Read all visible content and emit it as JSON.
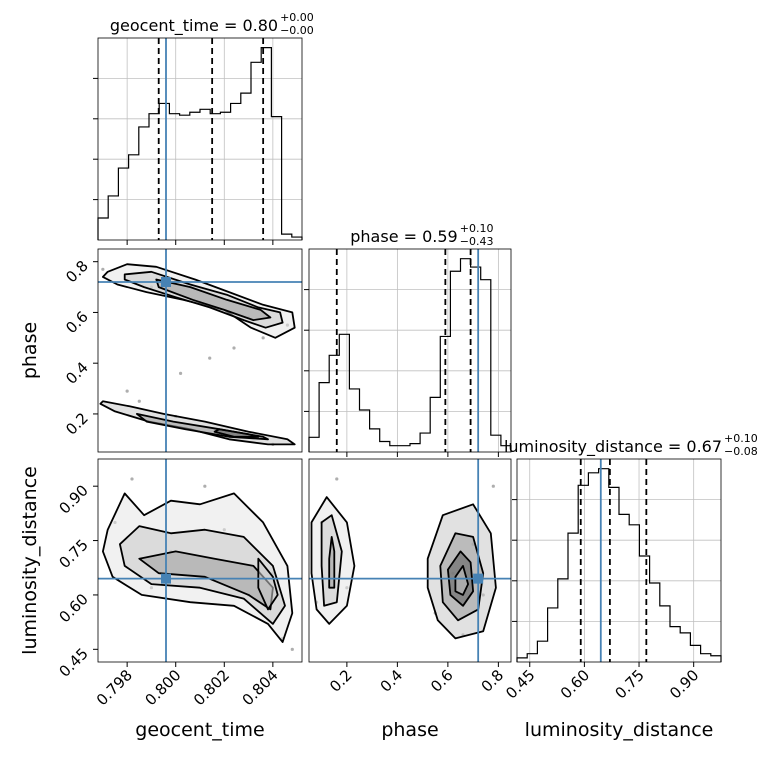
{
  "chart_data": {
    "type": "scatter",
    "kind": "corner-plot",
    "parameters": [
      "geocent_time",
      "phase",
      "luminosity_distance"
    ],
    "axis_labels": {
      "geocent_time": "geocent_time",
      "phase": "phase",
      "luminosity_distance": "luminosity_distance"
    },
    "titles": [
      {
        "param": "geocent_time",
        "text": "geocent_time = 0.80",
        "sup": "+0.00",
        "sub": "−0.00"
      },
      {
        "param": "phase",
        "text": "phase = 0.59",
        "sup": "+0.10",
        "sub": "−0.43"
      },
      {
        "param": "luminosity_distance",
        "text": "luminosity_distance = 0.67",
        "sup": "+0.10",
        "sub": "−0.08"
      }
    ],
    "ranges": {
      "geocent_time": [
        0.7968,
        0.8052
      ],
      "phase": [
        0.05,
        0.85
      ],
      "luminosity_distance": [
        0.415,
        0.975
      ]
    },
    "ticks": {
      "geocent_time": {
        "values": [
          0.798,
          0.8,
          0.802,
          0.804
        ],
        "labels": [
          "0.798",
          "0.800",
          "0.802",
          "0.804"
        ]
      },
      "phase": {
        "values": [
          0.2,
          0.4,
          0.6,
          0.8
        ],
        "labels": [
          "0.2",
          "0.4",
          "0.6",
          "0.8"
        ]
      },
      "luminosity_distance": {
        "values": [
          0.45,
          0.6,
          0.75,
          0.9
        ],
        "labels": [
          "0.45",
          "0.60",
          "0.75",
          "0.90"
        ]
      }
    },
    "truths": {
      "geocent_time": 0.7996,
      "phase": 0.72,
      "luminosity_distance": 0.645
    },
    "quantiles": {
      "geocent_time": [
        0.7993,
        0.8015,
        0.8036
      ],
      "phase": [
        0.16,
        0.59,
        0.69
      ],
      "luminosity_distance": [
        0.59,
        0.67,
        0.77
      ]
    },
    "histograms": {
      "geocent_time": {
        "edges": [
          0.7968,
          0.79722,
          0.79764,
          0.79806,
          0.79848,
          0.7989,
          0.79932,
          0.79974,
          0.80016,
          0.80058,
          0.801,
          0.80142,
          0.80184,
          0.80226,
          0.80268,
          0.8031,
          0.80352,
          0.80394,
          0.80436,
          0.80478,
          0.8052
        ],
        "counts": [
          0.15,
          0.3,
          0.49,
          0.58,
          0.77,
          0.86,
          0.93,
          0.86,
          0.85,
          0.87,
          0.89,
          0.86,
          0.87,
          0.93,
          1.0,
          1.21,
          1.31,
          0.84,
          0.04,
          0.02
        ]
      },
      "phase": {
        "edges": [
          0.05,
          0.09,
          0.13,
          0.17,
          0.21,
          0.25,
          0.29,
          0.33,
          0.37,
          0.41,
          0.45,
          0.49,
          0.53,
          0.57,
          0.61,
          0.65,
          0.69,
          0.73,
          0.77,
          0.81,
          0.85
        ],
        "counts": [
          0.07,
          0.33,
          0.46,
          0.56,
          0.3,
          0.2,
          0.11,
          0.05,
          0.03,
          0.03,
          0.04,
          0.09,
          0.26,
          0.55,
          0.86,
          0.92,
          0.88,
          0.82,
          0.08,
          0.03
        ]
      },
      "luminosity_distance": {
        "edges": [
          0.415,
          0.443,
          0.471,
          0.499,
          0.527,
          0.555,
          0.583,
          0.611,
          0.639,
          0.667,
          0.695,
          0.723,
          0.751,
          0.779,
          0.807,
          0.835,
          0.863,
          0.891,
          0.919,
          0.947,
          0.975
        ],
        "counts": [
          0.02,
          0.04,
          0.1,
          0.26,
          0.4,
          0.62,
          0.85,
          0.91,
          0.93,
          0.84,
          0.71,
          0.66,
          0.51,
          0.38,
          0.27,
          0.17,
          0.14,
          0.08,
          0.04,
          0.03
        ]
      }
    },
    "contours": {
      "phase|geocent_time": [
        [
          [
            0.7972,
            0.76
          ],
          [
            0.798,
            0.79
          ],
          [
            0.7992,
            0.78
          ],
          [
            0.8008,
            0.73
          ],
          [
            0.8022,
            0.68
          ],
          [
            0.8036,
            0.63
          ],
          [
            0.8048,
            0.6
          ],
          [
            0.8049,
            0.54
          ],
          [
            0.8041,
            0.5
          ],
          [
            0.8031,
            0.54
          ],
          [
            0.802,
            0.61
          ],
          [
            0.8003,
            0.65
          ],
          [
            0.7988,
            0.68
          ],
          [
            0.7976,
            0.71
          ],
          [
            0.797,
            0.74
          ]
        ],
        [
          [
            0.7979,
            0.75
          ],
          [
            0.799,
            0.76
          ],
          [
            0.8006,
            0.71
          ],
          [
            0.8021,
            0.67
          ],
          [
            0.8034,
            0.62
          ],
          [
            0.8043,
            0.6
          ],
          [
            0.8044,
            0.56
          ],
          [
            0.8037,
            0.54
          ],
          [
            0.8028,
            0.57
          ],
          [
            0.8014,
            0.62
          ],
          [
            0.8,
            0.66
          ],
          [
            0.7987,
            0.7
          ],
          [
            0.7979,
            0.73
          ]
        ],
        [
          [
            0.7992,
            0.73
          ],
          [
            0.8006,
            0.7
          ],
          [
            0.8021,
            0.65
          ],
          [
            0.8035,
            0.61
          ],
          [
            0.8039,
            0.58
          ],
          [
            0.8032,
            0.57
          ],
          [
            0.802,
            0.61
          ],
          [
            0.8007,
            0.65
          ],
          [
            0.7993,
            0.7
          ]
        ],
        [
          [
            0.797,
            0.25
          ],
          [
            0.7981,
            0.23
          ],
          [
            0.7995,
            0.2
          ],
          [
            0.8012,
            0.17
          ],
          [
            0.803,
            0.13
          ],
          [
            0.8046,
            0.1
          ],
          [
            0.8049,
            0.08
          ],
          [
            0.8038,
            0.08
          ],
          [
            0.8022,
            0.1
          ],
          [
            0.8006,
            0.14
          ],
          [
            0.7989,
            0.17
          ],
          [
            0.7975,
            0.21
          ],
          [
            0.7969,
            0.24
          ]
        ],
        [
          [
            0.7984,
            0.2
          ],
          [
            0.7999,
            0.17
          ],
          [
            0.8018,
            0.14
          ],
          [
            0.8036,
            0.11
          ],
          [
            0.8038,
            0.1
          ],
          [
            0.8022,
            0.11
          ],
          [
            0.8004,
            0.14
          ],
          [
            0.7988,
            0.17
          ]
        ],
        [
          [
            0.8018,
            0.14
          ],
          [
            0.803,
            0.12
          ],
          [
            0.8034,
            0.11
          ],
          [
            0.8024,
            0.11
          ],
          [
            0.8016,
            0.13
          ]
        ]
      ],
      "luminosity_distance|geocent_time": [
        [
          [
            0.7972,
            0.78
          ],
          [
            0.7979,
            0.88
          ],
          [
            0.7987,
            0.82
          ],
          [
            0.7998,
            0.86
          ],
          [
            0.801,
            0.85
          ],
          [
            0.8024,
            0.88
          ],
          [
            0.8036,
            0.8
          ],
          [
            0.8046,
            0.68
          ],
          [
            0.8048,
            0.55
          ],
          [
            0.8044,
            0.47
          ],
          [
            0.8038,
            0.52
          ],
          [
            0.8024,
            0.57
          ],
          [
            0.8006,
            0.58
          ],
          [
            0.7986,
            0.6
          ],
          [
            0.7974,
            0.65
          ],
          [
            0.797,
            0.72
          ]
        ],
        [
          [
            0.7977,
            0.74
          ],
          [
            0.7985,
            0.79
          ],
          [
            0.7998,
            0.77
          ],
          [
            0.8012,
            0.78
          ],
          [
            0.8028,
            0.76
          ],
          [
            0.804,
            0.68
          ],
          [
            0.8045,
            0.57
          ],
          [
            0.804,
            0.52
          ],
          [
            0.8028,
            0.59
          ],
          [
            0.801,
            0.62
          ],
          [
            0.799,
            0.63
          ],
          [
            0.7979,
            0.68
          ]
        ],
        [
          [
            0.7985,
            0.7
          ],
          [
            0.8,
            0.72
          ],
          [
            0.8016,
            0.7
          ],
          [
            0.8032,
            0.68
          ],
          [
            0.804,
            0.62
          ],
          [
            0.8039,
            0.56
          ],
          [
            0.803,
            0.6
          ],
          [
            0.8012,
            0.65
          ],
          [
            0.7993,
            0.66
          ]
        ],
        [
          [
            0.8034,
            0.7
          ],
          [
            0.804,
            0.65
          ],
          [
            0.8042,
            0.6
          ],
          [
            0.8038,
            0.56
          ],
          [
            0.8034,
            0.62
          ]
        ]
      ],
      "luminosity_distance|phase": [
        [
          [
            0.06,
            0.8
          ],
          [
            0.12,
            0.87
          ],
          [
            0.2,
            0.8
          ],
          [
            0.23,
            0.68
          ],
          [
            0.2,
            0.57
          ],
          [
            0.13,
            0.52
          ],
          [
            0.08,
            0.56
          ],
          [
            0.06,
            0.66
          ]
        ],
        [
          [
            0.1,
            0.8
          ],
          [
            0.14,
            0.82
          ],
          [
            0.18,
            0.72
          ],
          [
            0.16,
            0.58
          ],
          [
            0.11,
            0.57
          ],
          [
            0.1,
            0.68
          ]
        ],
        [
          [
            0.14,
            0.76
          ],
          [
            0.15,
            0.72
          ],
          [
            0.15,
            0.62
          ],
          [
            0.13,
            0.62
          ],
          [
            0.13,
            0.7
          ]
        ],
        [
          [
            0.52,
            0.7
          ],
          [
            0.58,
            0.82
          ],
          [
            0.7,
            0.85
          ],
          [
            0.77,
            0.77
          ],
          [
            0.79,
            0.62
          ],
          [
            0.74,
            0.5
          ],
          [
            0.63,
            0.48
          ],
          [
            0.56,
            0.53
          ],
          [
            0.52,
            0.62
          ]
        ],
        [
          [
            0.57,
            0.68
          ],
          [
            0.63,
            0.77
          ],
          [
            0.7,
            0.76
          ],
          [
            0.74,
            0.66
          ],
          [
            0.72,
            0.56
          ],
          [
            0.64,
            0.53
          ],
          [
            0.58,
            0.58
          ]
        ],
        [
          [
            0.6,
            0.67
          ],
          [
            0.65,
            0.72
          ],
          [
            0.69,
            0.69
          ],
          [
            0.7,
            0.61
          ],
          [
            0.66,
            0.57
          ],
          [
            0.61,
            0.6
          ]
        ],
        [
          [
            0.63,
            0.65
          ],
          [
            0.66,
            0.68
          ],
          [
            0.68,
            0.63
          ],
          [
            0.66,
            0.6
          ],
          [
            0.63,
            0.61
          ]
        ]
      ]
    },
    "samples": {
      "phase|geocent_time": [
        {
          "x": 0.797,
          "y": 0.77
        },
        {
          "x": 0.799,
          "y": 0.7
        },
        {
          "x": 0.801,
          "y": 0.64
        },
        {
          "x": 0.803,
          "y": 0.58
        },
        {
          "x": 0.8046,
          "y": 0.55
        },
        {
          "x": 0.8002,
          "y": 0.36
        },
        {
          "x": 0.8014,
          "y": 0.42
        },
        {
          "x": 0.8024,
          "y": 0.46
        },
        {
          "x": 0.8036,
          "y": 0.5
        },
        {
          "x": 0.798,
          "y": 0.29
        },
        {
          "x": 0.8,
          "y": 0.19
        },
        {
          "x": 0.802,
          "y": 0.12
        },
        {
          "x": 0.804,
          "y": 0.08
        },
        {
          "x": 0.7985,
          "y": 0.25
        }
      ],
      "luminosity_distance|geocent_time": [
        {
          "x": 0.7975,
          "y": 0.8
        },
        {
          "x": 0.7998,
          "y": 0.72
        },
        {
          "x": 0.8012,
          "y": 0.9
        },
        {
          "x": 0.803,
          "y": 0.6
        },
        {
          "x": 0.8044,
          "y": 0.48
        },
        {
          "x": 0.799,
          "y": 0.62
        },
        {
          "x": 0.802,
          "y": 0.78
        },
        {
          "x": 0.804,
          "y": 0.66
        },
        {
          "x": 0.7982,
          "y": 0.92
        },
        {
          "x": 0.8048,
          "y": 0.45
        }
      ],
      "luminosity_distance|phase": [
        {
          "x": 0.1,
          "y": 0.8
        },
        {
          "x": 0.2,
          "y": 0.62
        },
        {
          "x": 0.16,
          "y": 0.92
        },
        {
          "x": 0.62,
          "y": 0.66
        },
        {
          "x": 0.7,
          "y": 0.74
        },
        {
          "x": 0.55,
          "y": 0.55
        },
        {
          "x": 0.78,
          "y": 0.9
        },
        {
          "x": 0.66,
          "y": 0.49
        },
        {
          "x": 0.08,
          "y": 0.58
        },
        {
          "x": 0.74,
          "y": 0.6
        }
      ]
    },
    "colors": {
      "truth": "#4682b4",
      "step": "#000000",
      "grid": "#c0c0c0",
      "points": "#9a9a9a"
    }
  }
}
